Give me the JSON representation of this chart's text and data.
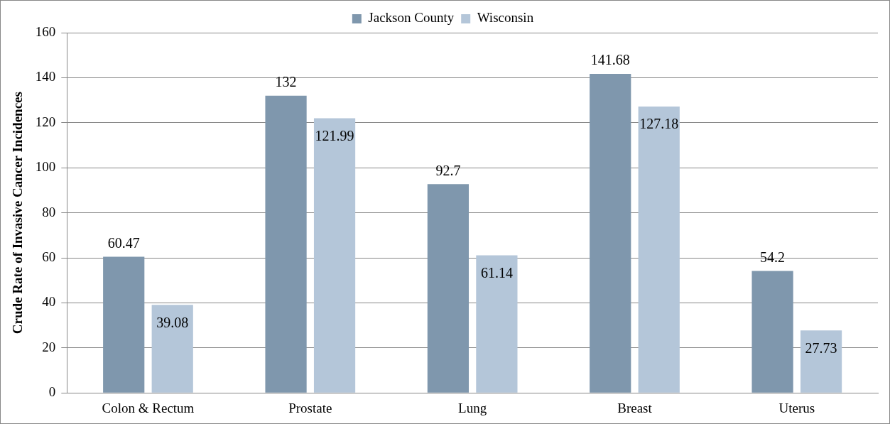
{
  "chart_data": {
    "type": "bar",
    "ylabel": "Crude Rate of Invasive Cancer Incidences",
    "categories": [
      "Colon & Rectum",
      "Prostate",
      "Lung",
      "Breast",
      "Uterus"
    ],
    "series": [
      {
        "name": "Jackson County",
        "color": "#7f97ad",
        "values": [
          60.47,
          132,
          92.7,
          141.68,
          54.2
        ]
      },
      {
        "name": "Wisconsin",
        "color": "#b4c6d9",
        "values": [
          39.08,
          121.99,
          61.14,
          127.18,
          27.73
        ]
      }
    ],
    "ylim": [
      0,
      160
    ],
    "yticks": [
      0,
      20,
      40,
      60,
      80,
      100,
      120,
      140,
      160
    ],
    "grid": "y",
    "legend": "top",
    "data_labels": true
  }
}
